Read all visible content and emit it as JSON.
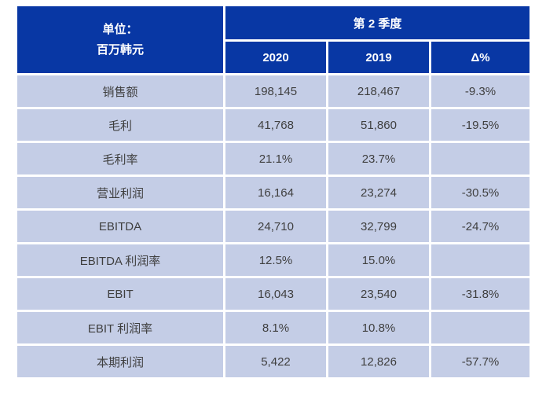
{
  "chart_data": {
    "type": "table",
    "unit_label_line1": "单位：",
    "unit_label_line2": "百万韩元",
    "group_header": "第 2 季度",
    "columns": [
      "2020",
      "2019",
      "Δ%"
    ],
    "rows": [
      {
        "label": "销售额",
        "values": [
          "198,145",
          "218,467",
          "-9.3%"
        ]
      },
      {
        "label": "毛利",
        "values": [
          "41,768",
          "51,860",
          "-19.5%"
        ]
      },
      {
        "label": "毛利率",
        "values": [
          "21.1%",
          "23.7%",
          ""
        ]
      },
      {
        "label": "营业利润",
        "values": [
          "16,164",
          "23,274",
          "-30.5%"
        ]
      },
      {
        "label": "EBITDA",
        "values": [
          "24,710",
          "32,799",
          "-24.7%"
        ]
      },
      {
        "label": "EBITDA 利润率",
        "values": [
          "12.5%",
          "15.0%",
          ""
        ]
      },
      {
        "label": "EBIT",
        "values": [
          "16,043",
          "23,540",
          "-31.8%"
        ]
      },
      {
        "label": "EBIT 利润率",
        "values": [
          "8.1%",
          "10.8%",
          ""
        ]
      },
      {
        "label": "本期利润",
        "values": [
          "5,422",
          "12,826",
          "-57.7%"
        ]
      }
    ]
  },
  "colors": {
    "header_bg": "#0837A4",
    "row_bg": "#C4CDE6",
    "grid": "#FFFFFF",
    "header_text": "#FFFFFF",
    "body_text": "#3F3F3F"
  }
}
